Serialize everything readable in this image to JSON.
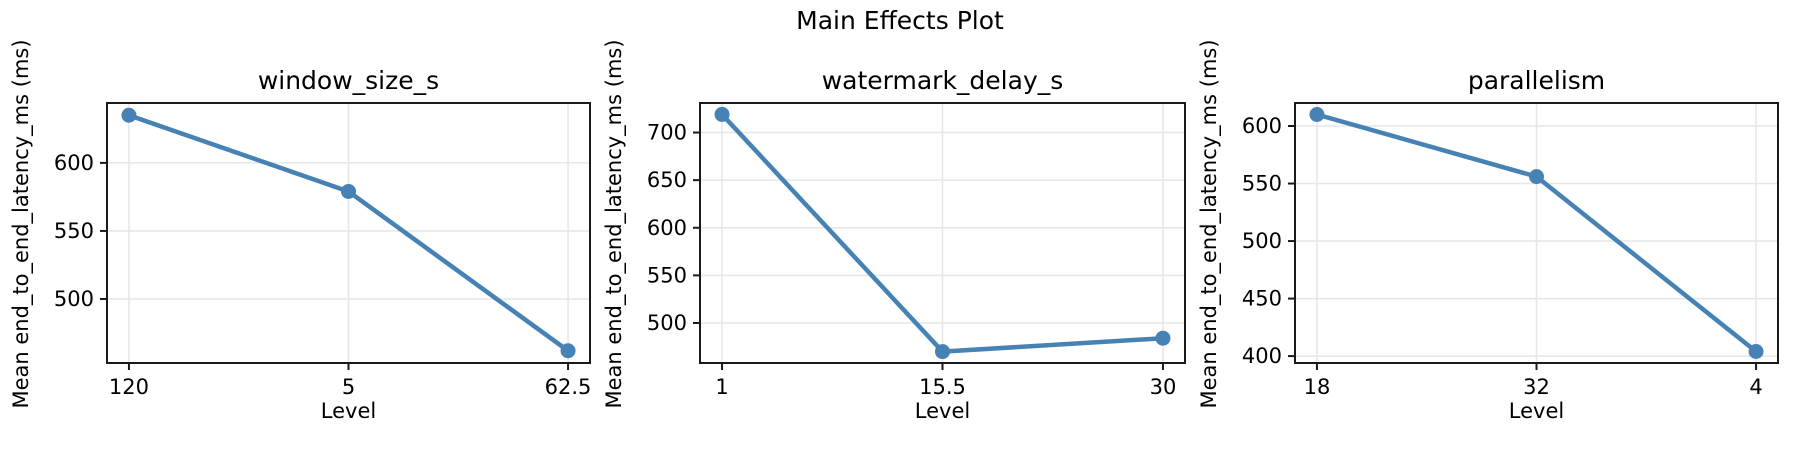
{
  "figure": {
    "title": "Main Effects Plot",
    "background": "#ffffff",
    "accent_color": "#4682B4",
    "grid_color": "#E6E6E6",
    "spine_color": "#1A1A1A",
    "text_color": "#000000",
    "grid": true
  },
  "chart_data": [
    {
      "type": "line",
      "title": "window_size_s",
      "xlabel": "Level",
      "ylabel": "Mean end_to_end_latency_ms (ms)",
      "categories": [
        "120",
        "5",
        "62.5"
      ],
      "values": [
        635,
        579,
        462
      ],
      "yticks": [
        500,
        550,
        600
      ],
      "ylim": [
        453,
        644
      ],
      "xlim": [
        -0.1,
        2.1
      ],
      "grid": true,
      "marker": "circle",
      "color": "#4682B4",
      "legend": "none"
    },
    {
      "type": "line",
      "title": "watermark_delay_s",
      "xlabel": "Level",
      "ylabel": "Mean end_to_end_latency_ms (ms)",
      "categories": [
        "1",
        "15.5",
        "30"
      ],
      "values": [
        719,
        470,
        484
      ],
      "yticks": [
        500,
        550,
        600,
        650,
        700
      ],
      "ylim": [
        458,
        731
      ],
      "xlim": [
        -0.1,
        2.1
      ],
      "grid": true,
      "marker": "circle",
      "color": "#4682B4",
      "legend": "none"
    },
    {
      "type": "line",
      "title": "parallelism",
      "xlabel": "Level",
      "ylabel": "Mean end_to_end_latency_ms (ms)",
      "categories": [
        "18",
        "32",
        "4"
      ],
      "values": [
        610,
        556,
        404
      ],
      "yticks": [
        400,
        450,
        500,
        550,
        600
      ],
      "ylim": [
        394,
        620
      ],
      "xlim": [
        -0.1,
        2.1
      ],
      "grid": true,
      "marker": "circle",
      "color": "#4682B4",
      "legend": "none"
    }
  ]
}
